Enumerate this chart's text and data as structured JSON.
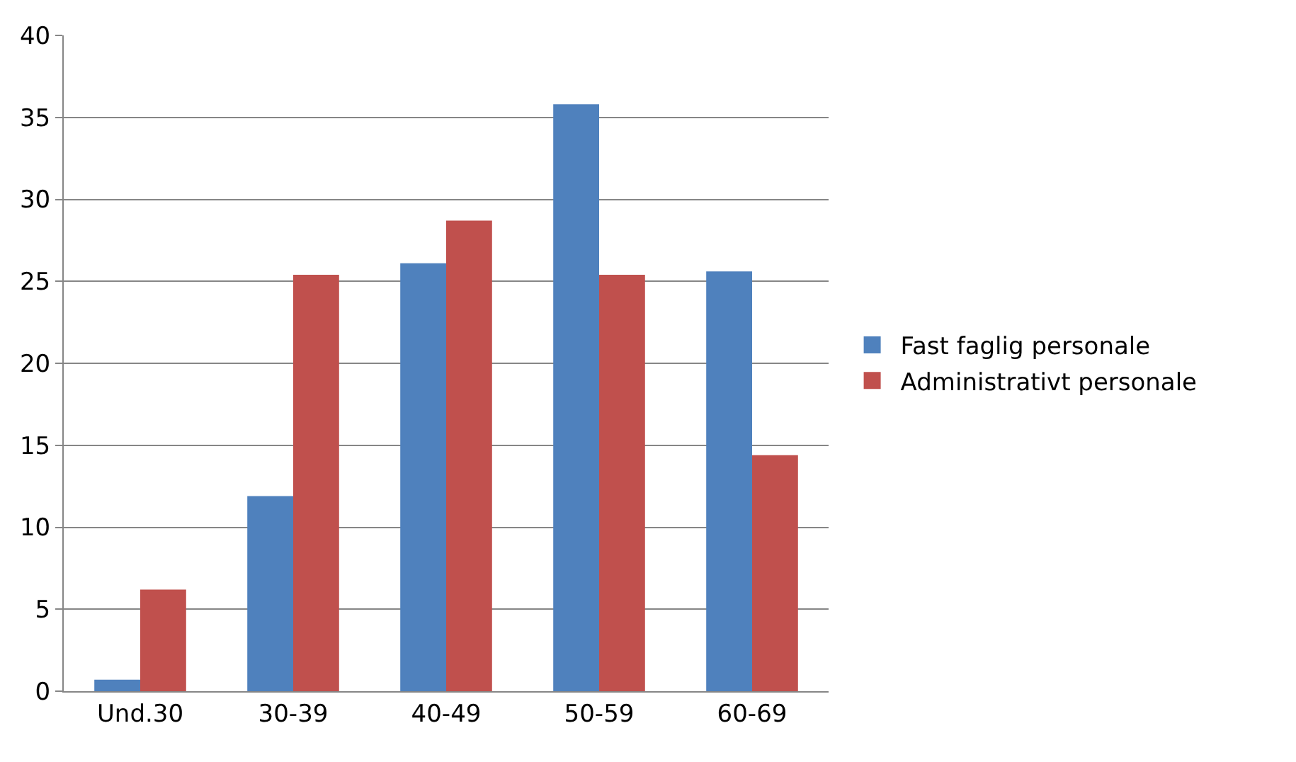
{
  "chart_data": {
    "type": "bar",
    "categories": [
      "Und.30",
      "30-39",
      "40-49",
      "50-59",
      "60-69"
    ],
    "series": [
      {
        "name": "Fast faglig personale",
        "color": "#4f81bd",
        "values": [
          0.7,
          11.9,
          26.1,
          35.8,
          25.6
        ]
      },
      {
        "name": "Administrativt personale",
        "color": "#c0504d",
        "values": [
          6.2,
          25.4,
          28.7,
          25.4,
          14.4
        ]
      }
    ],
    "ylim": [
      0,
      40
    ],
    "yticks": [
      0,
      5,
      10,
      15,
      20,
      25,
      30,
      35,
      40
    ],
    "grid": "y",
    "legend": "right"
  }
}
